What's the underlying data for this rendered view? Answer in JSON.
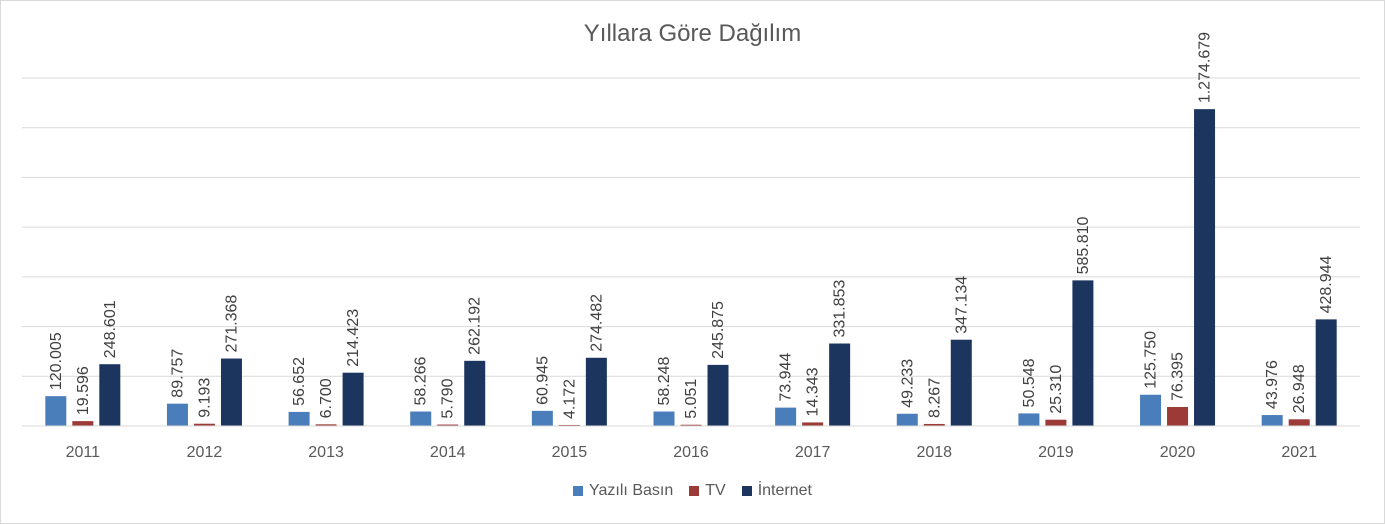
{
  "chart_data": {
    "type": "bar",
    "title": "Yıllara Göre Dağılım",
    "xlabel": "",
    "ylabel": "",
    "ylim": [
      0,
      1400000
    ],
    "grid": true,
    "legend_position": "bottom",
    "categories": [
      "2011",
      "2012",
      "2013",
      "2014",
      "2015",
      "2016",
      "2017",
      "2018",
      "2019",
      "2020",
      "2021"
    ],
    "series": [
      {
        "name": "Yazılı Basın",
        "color": "#4a7ebb",
        "values": [
          120005,
          89757,
          56652,
          58266,
          60945,
          58248,
          73944,
          49233,
          50548,
          125750,
          43976
        ],
        "labels": [
          "120.005",
          "89.757",
          "56.652",
          "58.266",
          "60.945",
          "58.248",
          "73.944",
          "49.233",
          "50.548",
          "125.750",
          "43.976"
        ]
      },
      {
        "name": "TV",
        "color": "#9b3a36",
        "values": [
          19596,
          9193,
          6700,
          5790,
          4172,
          5051,
          14343,
          8267,
          25310,
          76395,
          26948
        ],
        "labels": [
          "19.596",
          "9.193",
          "6.700",
          "5.790",
          "4.172",
          "5.051",
          "14.343",
          "8.267",
          "25.310",
          "76.395",
          "26.948"
        ]
      },
      {
        "name": "İnternet",
        "color": "#1c355e",
        "values": [
          248601,
          271368,
          214423,
          262192,
          274482,
          245875,
          331853,
          347134,
          585810,
          1274679,
          428944
        ],
        "labels": [
          "248.601",
          "271.368",
          "214.423",
          "262.192",
          "274.482",
          "245.875",
          "331.853",
          "347.134",
          "585.810",
          "1.274.679",
          "428.944"
        ]
      }
    ]
  }
}
